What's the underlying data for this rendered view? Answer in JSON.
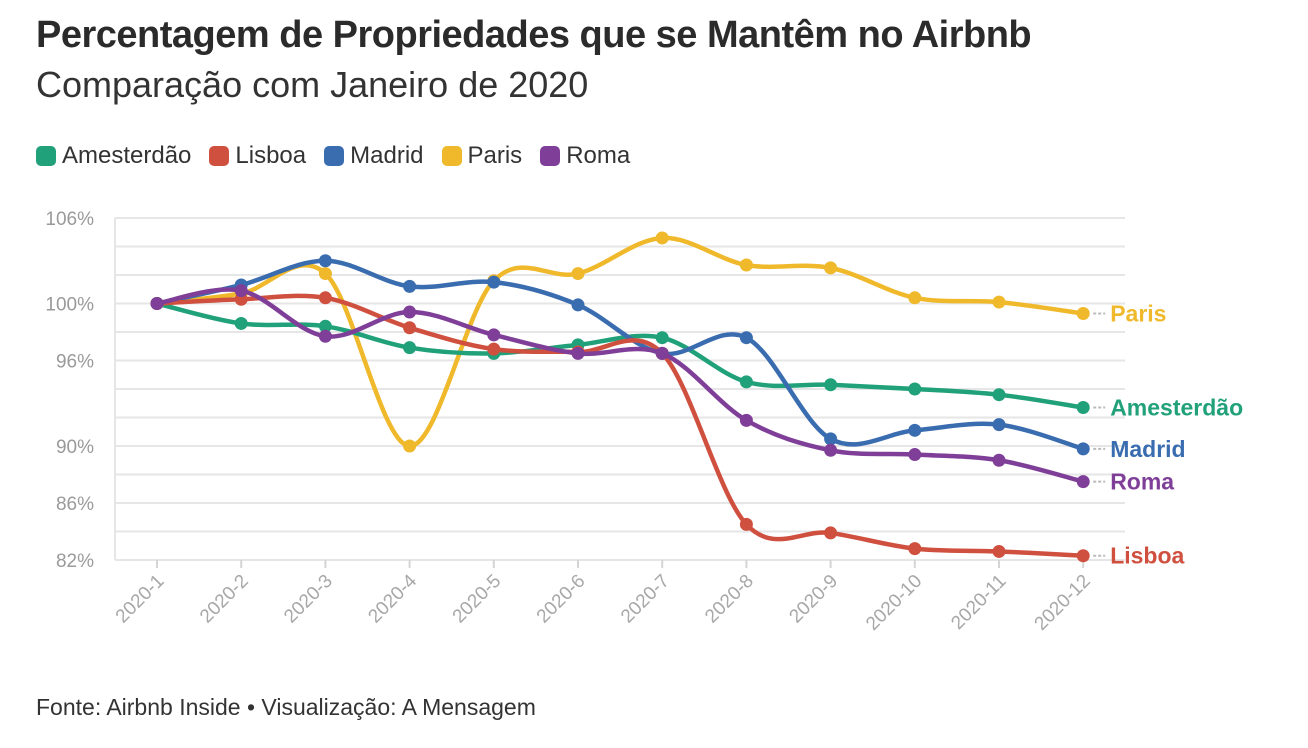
{
  "header": {
    "title": "Percentagem de Propriedades que se Mantêm no Airbnb",
    "subtitle": "Comparação com Janeiro de 2020"
  },
  "footer": {
    "source": "Fonte: Airbnb Inside • Visualização: A Mensagem"
  },
  "chart_data": {
    "type": "line",
    "title": "Percentagem de Propriedades que se Mantêm no Airbnb",
    "subtitle": "Comparação com Janeiro de 2020",
    "xlabel": "",
    "ylabel": "",
    "categories": [
      "2020-1",
      "2020-2",
      "2020-3",
      "2020-4",
      "2020-5",
      "2020-6",
      "2020-7",
      "2020-8",
      "2020-9",
      "2020-10",
      "2020-11",
      "2020-12"
    ],
    "y_ticks": [
      82,
      86,
      90,
      96,
      100,
      106
    ],
    "y_tick_labels": [
      "82%",
      "86%",
      "90%",
      "96%",
      "100%",
      "106%"
    ],
    "ylim": [
      82,
      106
    ],
    "grid": true,
    "legend_position": "top-left",
    "series": [
      {
        "name": "Amesterdão",
        "color": "#21a179",
        "values": [
          100,
          98.6,
          98.4,
          96.9,
          96.5,
          97.1,
          97.6,
          94.5,
          94.3,
          94.0,
          93.6,
          92.7
        ]
      },
      {
        "name": "Lisboa",
        "color": "#d0503f",
        "values": [
          100,
          100.3,
          100.4,
          98.3,
          96.8,
          96.6,
          96.5,
          84.5,
          83.9,
          82.8,
          82.6,
          82.3
        ]
      },
      {
        "name": "Madrid",
        "color": "#3a6cb0",
        "values": [
          100,
          101.3,
          103.0,
          101.2,
          101.5,
          99.9,
          96.5,
          97.6,
          90.5,
          91.1,
          91.5,
          89.8
        ]
      },
      {
        "name": "Paris",
        "color": "#f0b92c",
        "values": [
          100,
          100.7,
          102.1,
          90.0,
          101.6,
          102.1,
          104.6,
          102.7,
          102.5,
          100.4,
          100.1,
          99.3
        ]
      },
      {
        "name": "Roma",
        "color": "#7f3f98",
        "values": [
          100,
          100.9,
          97.7,
          99.4,
          97.8,
          96.5,
          96.5,
          91.8,
          89.7,
          89.4,
          89.0,
          87.5
        ]
      }
    ],
    "end_labels": [
      {
        "series": "Paris",
        "text": "Paris"
      },
      {
        "series": "Amesterdão",
        "text": "Amesterdão"
      },
      {
        "series": "Madrid",
        "text": "Madrid"
      },
      {
        "series": "Roma",
        "text": "Roma"
      },
      {
        "series": "Lisboa",
        "text": "Lisboa"
      }
    ]
  }
}
